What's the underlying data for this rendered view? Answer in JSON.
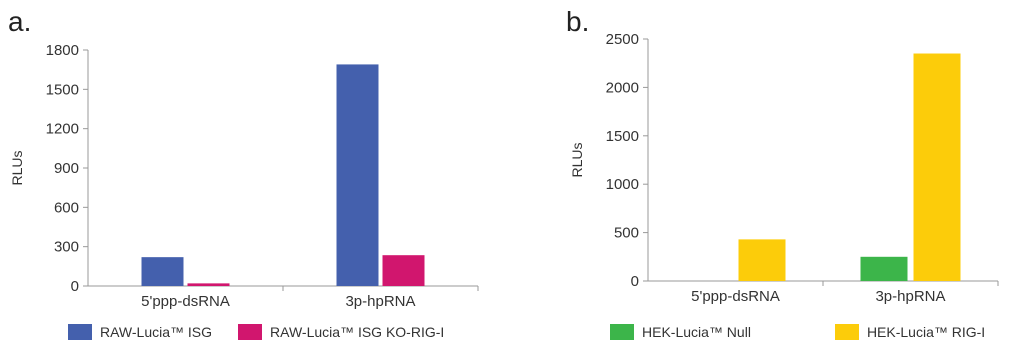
{
  "chart_data": [
    {
      "panel": "a.",
      "type": "bar",
      "ylabel": "RLUs",
      "ylim": [
        0,
        1800
      ],
      "yticks": [
        "0",
        "300",
        "600",
        "900",
        "1200",
        "1500",
        "1800"
      ],
      "categories": [
        "5'ppp-dsRNA",
        "3p-hpRNA"
      ],
      "series": [
        {
          "name": "RAW-Lucia™ ISG",
          "color": "#4460ad",
          "values": [
            220,
            1690
          ]
        },
        {
          "name": "RAW-Lucia™ ISG KO-RIG-I",
          "color": "#d1166e",
          "values": [
            20,
            235
          ]
        }
      ],
      "grid": false,
      "legend": "bottom"
    },
    {
      "panel": "b.",
      "type": "bar",
      "ylabel": "RLUs",
      "ylim": [
        0,
        2500
      ],
      "yticks": [
        "0",
        "500",
        "1000",
        "1500",
        "2000",
        "2500"
      ],
      "categories": [
        "5'ppp-dsRNA",
        "3p-hpRNA"
      ],
      "series": [
        {
          "name": "HEK-Lucia™ Null",
          "color": "#3cb54a",
          "values": [
            0,
            250
          ]
        },
        {
          "name": "HEK-Lucia™ RIG-I",
          "color": "#fccc0a",
          "values": [
            430,
            2350
          ]
        }
      ],
      "grid": false,
      "legend": "bottom"
    }
  ]
}
